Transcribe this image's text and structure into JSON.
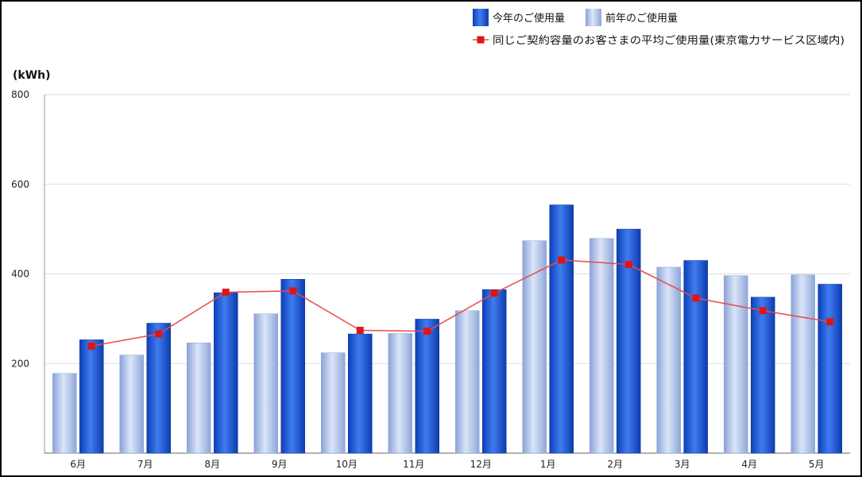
{
  "chart_data": {
    "type": "bar",
    "unit": "(kWh)",
    "ylim": [
      0,
      800
    ],
    "yticks": [
      200,
      400,
      600,
      800
    ],
    "grid": true,
    "legend_placement": "top-right",
    "categories": [
      "6月",
      "7月",
      "8月",
      "9月",
      "10月",
      "11月",
      "12月",
      "1月",
      "2月",
      "3月",
      "4月",
      "5月"
    ],
    "series": [
      {
        "name": "前年のご使用量",
        "type": "bar",
        "color": "#a9bde6",
        "values": [
          178,
          219,
          246,
          311,
          224,
          267,
          318,
          474,
          479,
          415,
          396,
          398
        ]
      },
      {
        "name": "今年のご使用量",
        "type": "bar",
        "color": "#1c55d6",
        "values": [
          253,
          290,
          358,
          388,
          266,
          299,
          365,
          554,
          500,
          430,
          348,
          377
        ]
      },
      {
        "name": "同じご契約容量のお客さまの平均ご使用量(東京電力サービス区域内)",
        "type": "line",
        "color": "#e02020",
        "values": [
          239,
          266,
          359,
          362,
          274,
          272,
          357,
          431,
          421,
          346,
          318,
          293
        ]
      }
    ]
  }
}
